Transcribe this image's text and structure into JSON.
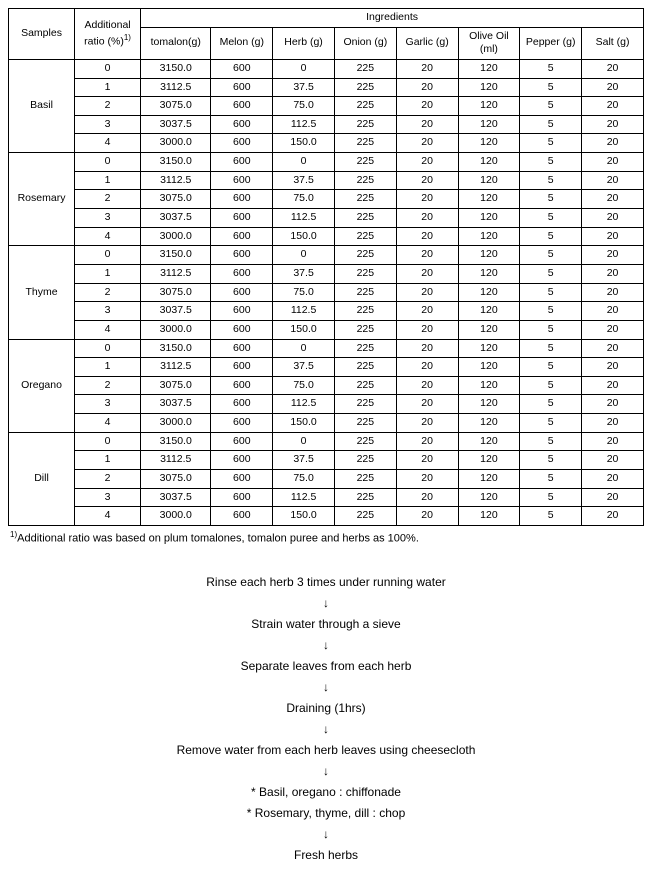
{
  "table": {
    "headers": {
      "samples": "Samples",
      "ratio": "Additional ratio (%)",
      "ratio_sup": "1)",
      "ingredients": "Ingredients",
      "cols": [
        "tomalon(g)",
        "Melon (g)",
        "Herb (g)",
        "Onion (g)",
        "Garlic (g)",
        "Olive Oil (ml)",
        "Pepper (g)",
        "Salt (g)"
      ]
    },
    "groups": [
      {
        "name": "Basil",
        "rows": [
          [
            "0",
            "3150.0",
            "600",
            "0",
            "225",
            "20",
            "120",
            "5",
            "20"
          ],
          [
            "1",
            "3112.5",
            "600",
            "37.5",
            "225",
            "20",
            "120",
            "5",
            "20"
          ],
          [
            "2",
            "3075.0",
            "600",
            "75.0",
            "225",
            "20",
            "120",
            "5",
            "20"
          ],
          [
            "3",
            "3037.5",
            "600",
            "112.5",
            "225",
            "20",
            "120",
            "5",
            "20"
          ],
          [
            "4",
            "3000.0",
            "600",
            "150.0",
            "225",
            "20",
            "120",
            "5",
            "20"
          ]
        ]
      },
      {
        "name": "Rosemary",
        "rows": [
          [
            "0",
            "3150.0",
            "600",
            "0",
            "225",
            "20",
            "120",
            "5",
            "20"
          ],
          [
            "1",
            "3112.5",
            "600",
            "37.5",
            "225",
            "20",
            "120",
            "5",
            "20"
          ],
          [
            "2",
            "3075.0",
            "600",
            "75.0",
            "225",
            "20",
            "120",
            "5",
            "20"
          ],
          [
            "3",
            "3037.5",
            "600",
            "112.5",
            "225",
            "20",
            "120",
            "5",
            "20"
          ],
          [
            "4",
            "3000.0",
            "600",
            "150.0",
            "225",
            "20",
            "120",
            "5",
            "20"
          ]
        ]
      },
      {
        "name": "Thyme",
        "rows": [
          [
            "0",
            "3150.0",
            "600",
            "0",
            "225",
            "20",
            "120",
            "5",
            "20"
          ],
          [
            "1",
            "3112.5",
            "600",
            "37.5",
            "225",
            "20",
            "120",
            "5",
            "20"
          ],
          [
            "2",
            "3075.0",
            "600",
            "75.0",
            "225",
            "20",
            "120",
            "5",
            "20"
          ],
          [
            "3",
            "3037.5",
            "600",
            "112.5",
            "225",
            "20",
            "120",
            "5",
            "20"
          ],
          [
            "4",
            "3000.0",
            "600",
            "150.0",
            "225",
            "20",
            "120",
            "5",
            "20"
          ]
        ]
      },
      {
        "name": "Oregano",
        "rows": [
          [
            "0",
            "3150.0",
            "600",
            "0",
            "225",
            "20",
            "120",
            "5",
            "20"
          ],
          [
            "1",
            "3112.5",
            "600",
            "37.5",
            "225",
            "20",
            "120",
            "5",
            "20"
          ],
          [
            "2",
            "3075.0",
            "600",
            "75.0",
            "225",
            "20",
            "120",
            "5",
            "20"
          ],
          [
            "3",
            "3037.5",
            "600",
            "112.5",
            "225",
            "20",
            "120",
            "5",
            "20"
          ],
          [
            "4",
            "3000.0",
            "600",
            "150.0",
            "225",
            "20",
            "120",
            "5",
            "20"
          ]
        ]
      },
      {
        "name": "Dill",
        "rows": [
          [
            "0",
            "3150.0",
            "600",
            "0",
            "225",
            "20",
            "120",
            "5",
            "20"
          ],
          [
            "1",
            "3112.5",
            "600",
            "37.5",
            "225",
            "20",
            "120",
            "5",
            "20"
          ],
          [
            "2",
            "3075.0",
            "600",
            "75.0",
            "225",
            "20",
            "120",
            "5",
            "20"
          ],
          [
            "3",
            "3037.5",
            "600",
            "112.5",
            "225",
            "20",
            "120",
            "5",
            "20"
          ],
          [
            "4",
            "3000.0",
            "600",
            "150.0",
            "225",
            "20",
            "120",
            "5",
            "20"
          ]
        ]
      }
    ]
  },
  "footnote_sup": "1)",
  "footnote": "Additional ratio was based on plum tomalones, tomalon puree and herbs as 100%.",
  "flow": {
    "arrow": "↓",
    "steps": [
      "Rinse each herb 3 times under running water",
      "Strain water through a sieve",
      "Separate leaves from each herb",
      "Draining (1hrs)",
      "Remove water from each herb leaves using cheesecloth"
    ],
    "cut1": "* Basil, oregano : chiffonade",
    "cut2": "* Rosemary, thyme, dill : chop",
    "final": "Fresh herbs"
  }
}
